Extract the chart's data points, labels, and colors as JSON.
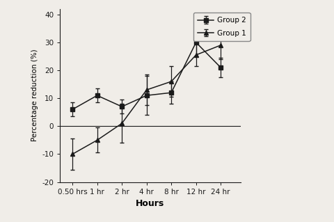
{
  "x_labels": [
    "0.50 hrs",
    "1 hr",
    "2 hr",
    "4 hr",
    "8 hr",
    "12 hr",
    "24 hr"
  ],
  "x_positions": [
    0,
    1,
    2,
    3,
    4,
    5,
    6
  ],
  "group2_y": [
    6.0,
    11.0,
    7.0,
    11.0,
    12.0,
    30.0,
    21.0
  ],
  "group2_yerr": [
    2.5,
    2.5,
    2.5,
    7.0,
    4.0,
    5.0,
    3.5
  ],
  "group1_y": [
    -10.0,
    -5.0,
    1.0,
    13.0,
    16.0,
    25.5,
    29.0
  ],
  "group1_yerr": [
    5.5,
    4.5,
    7.0,
    5.5,
    5.5,
    4.0,
    5.0
  ],
  "xlabel": "Hours",
  "ylabel": "Percentage reduction (%)",
  "ylim": [
    -20,
    42
  ],
  "yticks": [
    -20,
    -10,
    0,
    10,
    20,
    30,
    40
  ],
  "line_color": "#1a1a1a",
  "background_color": "#f0ede8",
  "legend_group2_label": "Group 2",
  "legend_group1_label": "Group 1"
}
